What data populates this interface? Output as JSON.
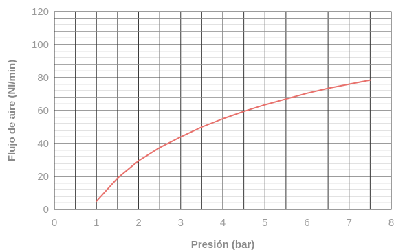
{
  "chart_data": {
    "type": "line",
    "xlabel": "Presión (bar)",
    "ylabel": "Flujo de aire (Nl/min)",
    "xlim": [
      0,
      8
    ],
    "ylim": [
      0,
      120
    ],
    "x_ticks": [
      "0",
      "1",
      "2",
      "3",
      "4",
      "5",
      "6",
      "7",
      "8"
    ],
    "y_ticks": [
      "0",
      "20",
      "40",
      "60",
      "80",
      "100",
      "120"
    ],
    "grid": true,
    "series": [
      {
        "color": "#e8716c",
        "x": [
          1,
          1.5,
          2,
          2.5,
          3,
          3.5,
          4,
          4.5,
          5,
          5.5,
          6,
          6.5,
          7,
          7.5
        ],
        "y": [
          5,
          19,
          29.5,
          37.5,
          44,
          50,
          55,
          59.5,
          63.5,
          67,
          70.5,
          73.5,
          76,
          78.5
        ]
      }
    ]
  }
}
